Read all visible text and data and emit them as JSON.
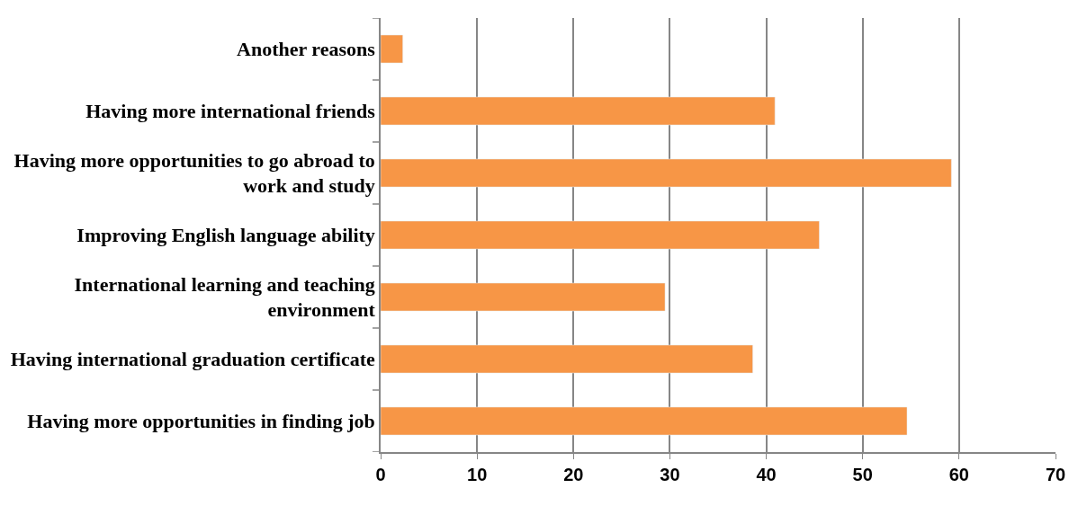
{
  "chart_data": {
    "type": "bar",
    "orientation": "horizontal",
    "categories": [
      "Another reasons",
      "Having more international friends",
      "Having more opportunities to go abroad to work and study",
      "Improving English language ability",
      "International learning and teaching environment",
      "Having international graduation certificate",
      "Having more opportunities in finding job"
    ],
    "values": [
      2.3,
      40.9,
      59.2,
      45.5,
      29.5,
      38.6,
      54.6
    ],
    "color": "#f79646",
    "xlim": [
      0,
      70
    ],
    "xticks": [
      0,
      10,
      20,
      30,
      40,
      50,
      60,
      70
    ],
    "grid": "x",
    "legend": false
  }
}
